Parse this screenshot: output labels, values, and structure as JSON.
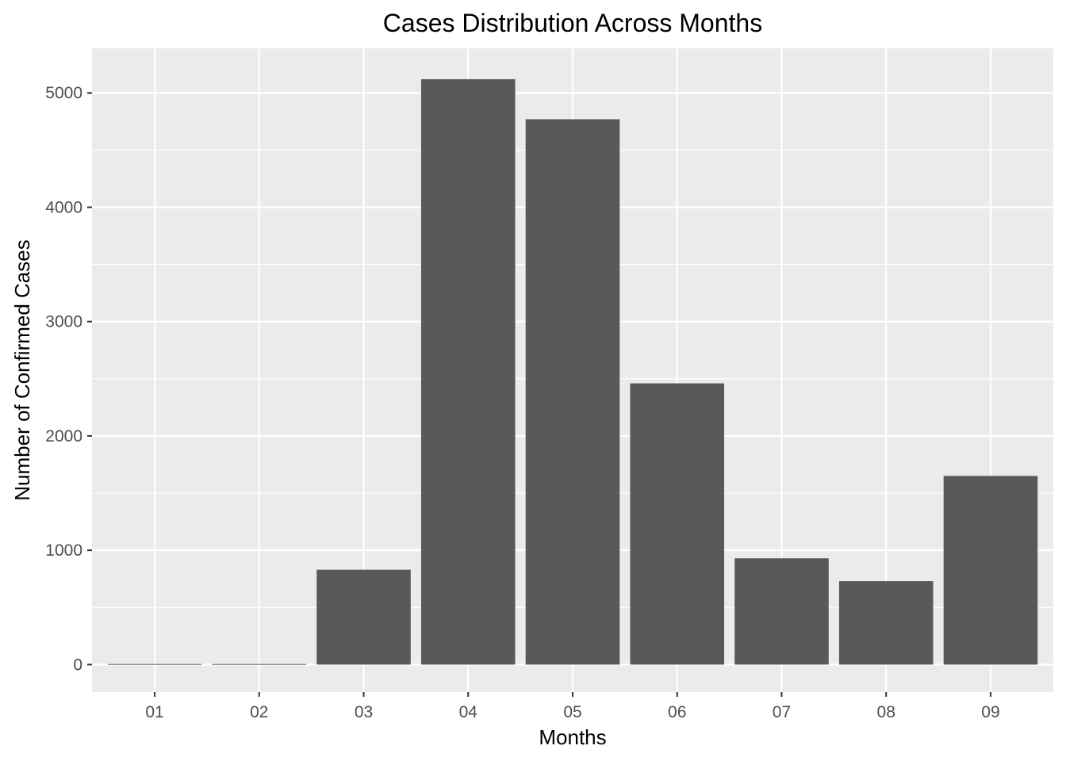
{
  "chart_data": {
    "type": "bar",
    "title": "Cases Distribution Across Months",
    "xlabel": "Months",
    "ylabel": "Number of Confirmed Cases",
    "categories": [
      "01",
      "02",
      "03",
      "04",
      "05",
      "06",
      "07",
      "08",
      "09"
    ],
    "values": [
      5,
      5,
      830,
      5120,
      4770,
      2460,
      930,
      730,
      1650
    ],
    "ylim": [
      -240,
      5390
    ],
    "yticks": [
      0,
      1000,
      2000,
      3000,
      4000,
      5000
    ],
    "ytick_labels": [
      "0",
      "1000",
      "2000",
      "3000",
      "4000",
      "5000"
    ],
    "grid": true,
    "legend": "none",
    "colors": {
      "bar": "#595959",
      "panel": "#ebebeb",
      "grid": "#ffffff",
      "tick_text": "#4d4d4d",
      "text": "#000000"
    }
  }
}
